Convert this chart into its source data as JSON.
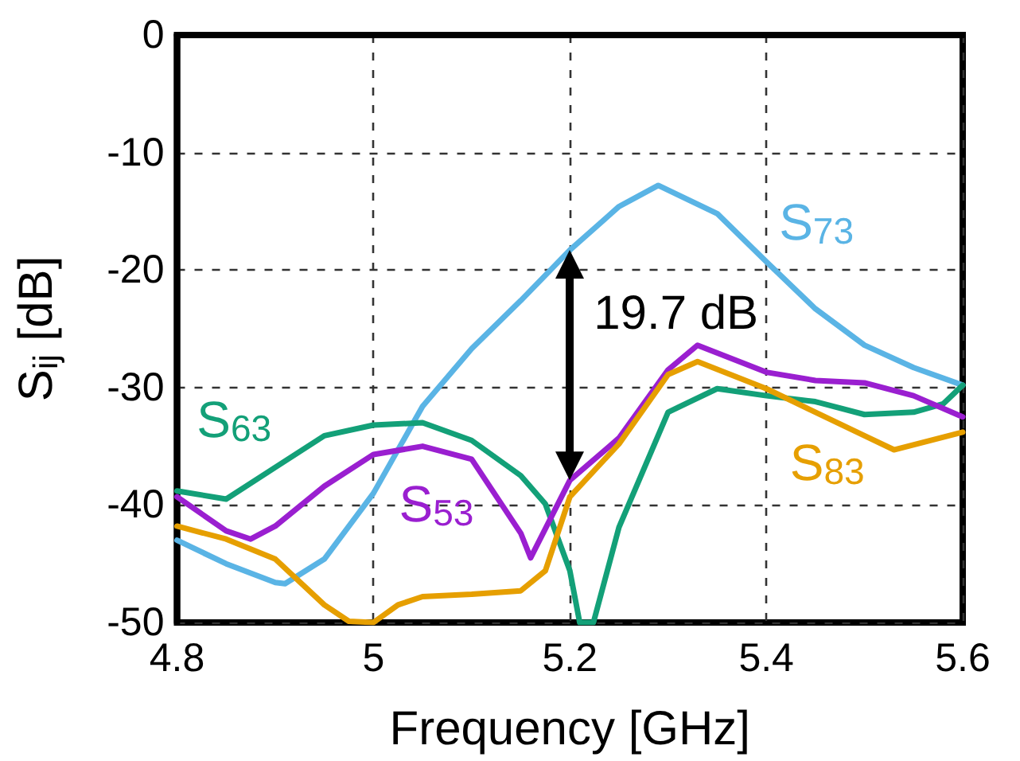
{
  "chart_data": {
    "type": "line",
    "xlabel": "Frequency [GHz]",
    "ylabel": "S$_{ij}$ [dB]",
    "xlim": [
      4.8,
      5.6
    ],
    "xticks": [
      4.8,
      5,
      5.2,
      5.4,
      5.6
    ],
    "ylim": [
      -50,
      0
    ],
    "yticks": [
      -50,
      -40,
      -30,
      -20,
      -10,
      0
    ],
    "grid": true,
    "line_style": "solid",
    "annotations": [
      "19.7 dB"
    ],
    "series": [
      {
        "name": "S$_{73}$",
        "color": "#5ab4e5",
        "x": [
          4.8,
          4.85,
          4.9,
          4.91,
          4.95,
          5.0,
          5.05,
          5.1,
          5.15,
          5.2,
          5.25,
          5.29,
          5.35,
          5.4,
          5.45,
          5.5,
          5.55,
          5.6
        ],
        "values": [
          -43,
          -45,
          -46.6,
          -46.7,
          -44.6,
          -39,
          -31.6,
          -26.7,
          -22.6,
          -18.3,
          -14.6,
          -12.8,
          -15.2,
          -19.3,
          -23.3,
          -26.4,
          -28.3,
          -29.8
        ]
      },
      {
        "name": "S$_{63}$",
        "color": "#13a078",
        "x": [
          4.8,
          4.85,
          4.9,
          4.95,
          5.0,
          5.05,
          5.1,
          5.15,
          5.175,
          5.2,
          5.21,
          5.224,
          5.25,
          5.3,
          5.35,
          5.4,
          5.45,
          5.5,
          5.55,
          5.58,
          5.6
        ],
        "values": [
          -38.8,
          -39.5,
          -36.8,
          -34.1,
          -33.2,
          -33,
          -34.5,
          -37.5,
          -39.9,
          -45.6,
          -50,
          -50,
          -41.9,
          -32.1,
          -30.1,
          -30.7,
          -31.2,
          -32.3,
          -32.1,
          -31.4,
          -29.8
        ]
      },
      {
        "name": "S$_{53}$",
        "color": "#9a1fd0",
        "x": [
          4.8,
          4.85,
          4.875,
          4.9,
          4.95,
          5.0,
          5.05,
          5.1,
          5.15,
          5.16,
          5.2,
          5.25,
          5.3,
          5.33,
          5.4,
          5.45,
          5.5,
          5.55,
          5.6
        ],
        "values": [
          -39.3,
          -42.2,
          -42.9,
          -41.8,
          -38.4,
          -35.7,
          -35,
          -36.1,
          -42.4,
          -44.5,
          -37.9,
          -34.3,
          -28.5,
          -26.4,
          -28.7,
          -29.4,
          -29.6,
          -30.7,
          -32.5
        ]
      },
      {
        "name": "S$_{83}$",
        "color": "#e69f00",
        "x": [
          4.8,
          4.85,
          4.9,
          4.95,
          4.975,
          5.0,
          5.025,
          5.05,
          5.1,
          5.15,
          5.175,
          5.2,
          5.25,
          5.3,
          5.33,
          5.4,
          5.45,
          5.5,
          5.53,
          5.6
        ],
        "values": [
          -41.8,
          -42.9,
          -44.6,
          -48.5,
          -49.9,
          -50,
          -48.5,
          -47.8,
          -47.6,
          -47.3,
          -45.6,
          -39.3,
          -34.8,
          -28.9,
          -27.8,
          -30.1,
          -32.1,
          -34.1,
          -35.3,
          -33.8
        ]
      }
    ]
  }
}
